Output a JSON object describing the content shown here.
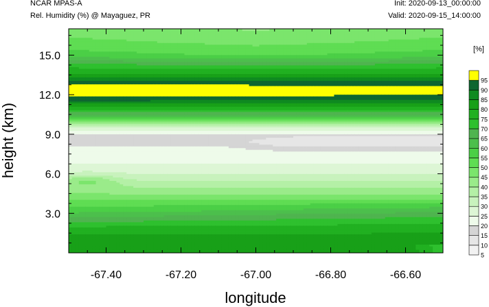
{
  "header": {
    "title": "NCAR MPAS-A",
    "subtitle": "Rel. Humidity (%) @ Mayaguez, PR",
    "init": "Init: 2020-09-13_00:00:00",
    "valid": "Valid: 2020-09-15_14:00:00"
  },
  "chart_data": {
    "type": "heatmap",
    "title": "NCAR MPAS-A",
    "subtitle": "Rel. Humidity (%) @ Mayaguez, PR",
    "xlabel": "longitude",
    "ylabel": "height (km)",
    "xlim": [
      -67.5,
      -66.5
    ],
    "ylim": [
      0,
      17
    ],
    "x_ticks": [
      -67.4,
      -67.2,
      -67.0,
      -66.8,
      -66.6
    ],
    "x_tick_labels": [
      "-67.40",
      "-67.20",
      "-67.00",
      "-66.80",
      "-66.60"
    ],
    "y_ticks": [
      3,
      6,
      9,
      12,
      15
    ],
    "y_tick_labels": [
      "3.0",
      "6.0",
      "9.0",
      "12.0",
      "15.0"
    ],
    "colorbar": {
      "unit_label": "[%]",
      "levels": [
        5,
        10,
        15,
        20,
        25,
        30,
        35,
        40,
        45,
        50,
        55,
        60,
        65,
        70,
        75,
        80,
        85,
        90,
        95
      ],
      "colors": [
        "#f2f2f2",
        "#e6e6e6",
        "#d5d5d5",
        "#eefbea",
        "#ddf6d5",
        "#c8f2bd",
        "#b4f0a6",
        "#9aeb8a",
        "#7be56c",
        "#5fdd53",
        "#4bcf46",
        "#4cbf4c",
        "#4fb44f",
        "#2ec02e",
        "#21b021",
        "#18a018",
        "#0f8a20",
        "#0e6630",
        "#ffff00"
      ]
    },
    "profile": [
      {
        "z": 0.2,
        "rh": 84
      },
      {
        "z": 1.0,
        "rh": 82
      },
      {
        "z": 1.8,
        "rh": 78
      },
      {
        "z": 2.5,
        "rh": 68
      },
      {
        "z": 3.2,
        "rh": 58
      },
      {
        "z": 4.0,
        "rh": 50
      },
      {
        "z": 5.0,
        "rh": 40
      },
      {
        "z": 6.0,
        "rh": 30
      },
      {
        "z": 7.0,
        "rh": 24
      },
      {
        "z": 8.0,
        "rh": 21
      },
      {
        "z": 8.5,
        "rh": 18
      },
      {
        "z": 9.0,
        "rh": 20
      },
      {
        "z": 9.5,
        "rh": 30
      },
      {
        "z": 10.3,
        "rh": 60
      },
      {
        "z": 11.0,
        "rh": 78
      },
      {
        "z": 11.6,
        "rh": 89
      },
      {
        "z": 12.3,
        "rh": 96
      },
      {
        "z": 13.0,
        "rh": 91
      },
      {
        "z": 13.5,
        "rh": 82
      },
      {
        "z": 14.3,
        "rh": 70
      },
      {
        "z": 15.0,
        "rh": 56
      },
      {
        "z": 16.0,
        "rh": 50
      },
      {
        "z": 17.0,
        "rh": 46
      }
    ]
  }
}
